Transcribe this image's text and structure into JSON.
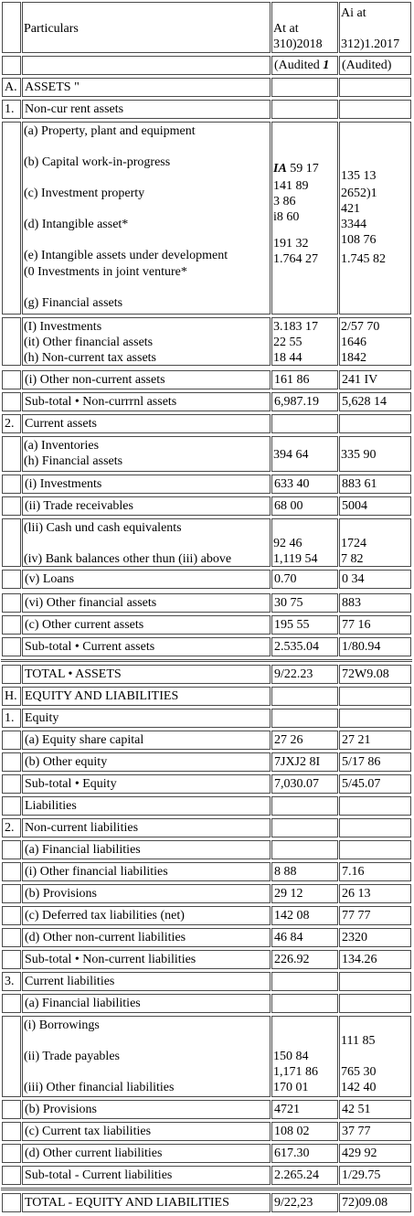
{
  "header": {
    "particulars": "Particulars",
    "col1_line1": "At at",
    "col1_line2": "310)2018",
    "col2_line1": "Ai at",
    "col2_line2": "312)1.2017",
    "col1_audit_mark": "(Audited ",
    "col1_audit_bold": "1",
    "col2_audit": "(Audited)"
  },
  "assets": {
    "section_no": "A.",
    "section_title": "ASSETS \"",
    "noncurrent_no": "1.",
    "noncurrent_title": "Non-cur rent assets",
    "group1_labels": [
      "(a)    Property, plant and equipment",
      "(b)    Capital work-in-progress",
      "(c)    Investment property",
      "(d)    Intangible asset*",
      "(e)    Intangible assets under development",
      "(0 Investments in joint venture*",
      "(g) Financial assets"
    ],
    "group1_col1_bold": "IA",
    "group1_col1": [
      "59 17",
      "141 89",
      "3 86",
      "i8 60",
      "191 32",
      "1.764 27"
    ],
    "group1_col2": [
      "135 13",
      "2652)1",
      "421",
      "3344",
      "108 76",
      "1.745 82"
    ],
    "group2_labels": [
      "(I) Investments",
      "(it) Other financial assets",
      "(h) Non-current tax assets"
    ],
    "group2_col1": [
      "3.183 17",
      "22 55",
      "18 44"
    ],
    "group2_col2": [
      "2/57 70",
      "1646",
      "1842"
    ],
    "other_noncurrent": {
      "label": "(i) Other non-current assets",
      "v1": "161 86",
      "v2": "241 IV"
    },
    "subtotal_noncurrent": {
      "label": "Sub-total • Non-currrnl assets",
      "v1": "6,987.19",
      "v2": "5,628 14"
    },
    "current_no": "2.",
    "current_title": "Current assets",
    "inv_labels": [
      "(a) Inventories",
      "(h) Financial assets"
    ],
    "inv_v1": "394 64",
    "inv_v2": "335 90",
    "investments": {
      "label": "(i) Investments",
      "v1": "633 40",
      "v2": "883 61"
    },
    "trade_receivables": {
      "label": "(ii) Trade receivables",
      "v1": "68 00",
      "v2": "5004"
    },
    "cash_labels": [
      "(lii) Cash und cash equivalents",
      "(iv) Bank balances other thun (iii) above"
    ],
    "cash_col1": [
      "92 46",
      "1,119 54"
    ],
    "cash_col2": [
      "1724",
      "7 82"
    ],
    "loans": {
      "label": "(v) Loans",
      "v1": "0.70",
      "v2": "0 34"
    },
    "other_fin": {
      "label": "(vi) Other financial assets",
      "v1": "30 75",
      "v2": "883"
    },
    "other_current": {
      "label": "(c) Other current assets",
      "v1": "195 55",
      "v2": "77 16"
    },
    "subtotal_current": {
      "label": "Sub-total • Current assets",
      "v1": "2.535.04",
      "v2": "1/80.94"
    },
    "total": {
      "label": "TOTAL • ASSETS",
      "v1": "9/22.23",
      "v2": "72W9.08"
    }
  },
  "equity_liabilities": {
    "section_no": "H.",
    "section_title": "EQUITY AND LIABILITIES",
    "equity_no": "1.",
    "equity_title": "Equity",
    "share_capital": {
      "label": "(a) Equity share capital",
      "v1": "27 26",
      "v2": "27 21"
    },
    "other_equity": {
      "label": "(b) Other equity",
      "v1": "7JXJ2 8I",
      "v2": "5/17 86"
    },
    "subtotal_equity": {
      "label": "Sub-total • Equity",
      "v1": "7,030.07",
      "v2": "5/45.07"
    },
    "liabilities_title": "Liabilities",
    "noncurrent_no": "2.",
    "noncurrent_title": "Non-current liabilities",
    "nc_financial": "(a) Financial liabilities",
    "nc_other_fin": {
      "label": "(i) Other financial liabilities",
      "v1": "8 88",
      "v2": "7.16"
    },
    "nc_provisions": {
      "label": "(b) Provisions",
      "v1": "29 12",
      "v2": "26 13"
    },
    "nc_deferred": {
      "label": "(c) Deferred tax liabilities (net)",
      "v1": "142 08",
      "v2": "77 77"
    },
    "nc_other": {
      "label": "(d) Other non-current liabilities",
      "v1": "46 84",
      "v2": "2320"
    },
    "subtotal_noncurrent": {
      "label": "Sub-total • Non-current liabilities",
      "v1": "226.92",
      "v2": "134.26"
    },
    "current_no": "3.",
    "current_title": "Current liabilities",
    "cl_financial": "(a) Financial liabilities",
    "cl_labels": [
      "(i)     Borrowings",
      "(ii)     Trade payables",
      "(iii)     Other financial liabilities"
    ],
    "cl_col1": [
      "150 84",
      "1,171 86",
      "170 01"
    ],
    "cl_col2": [
      "111 85",
      "765 30",
      "142 40"
    ],
    "cl_provisions": {
      "label": "(b) Provisions",
      "v1": "4721",
      "v2": "42 51"
    },
    "cl_tax": {
      "label": "(c) Current tax liabilities",
      "v1": "108 02",
      "v2": "37 77"
    },
    "cl_other": {
      "label": "(d) Other current liabilities",
      "v1": "617.30",
      "v2": "429 92"
    },
    "subtotal_current": {
      "label": "Sub-total - Current liabilities",
      "v1": "2.265.24",
      "v2": "1/29.75"
    },
    "total": {
      "label": "TOTAL - EQUITY AND LIABILITIES",
      "v1": "9/22,23",
      "v2": "72)09.08"
    }
  }
}
